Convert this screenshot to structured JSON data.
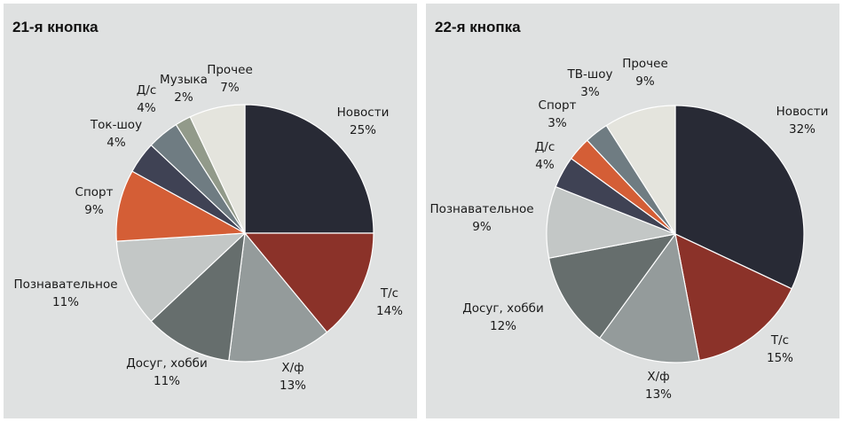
{
  "chart_data": [
    {
      "type": "pie",
      "title": "21-я кнопка",
      "slices": [
        {
          "label": "Новости",
          "value": 25,
          "value_label": "25%",
          "color": "#282a35"
        },
        {
          "label": "Т/с",
          "value": 14,
          "value_label": "14%",
          "color": "#8b3229"
        },
        {
          "label": "Х/ф",
          "value": 13,
          "value_label": "13%",
          "color": "#949b9b"
        },
        {
          "label": "Досуг, хобби",
          "value": 11,
          "value_label": "11%",
          "color": "#666e6d"
        },
        {
          "label": "Познавательное",
          "value": 11,
          "value_label": "11%",
          "color": "#c3c7c6"
        },
        {
          "label": "Спорт",
          "value": 9,
          "value_label": "9%",
          "color": "#d45e36"
        },
        {
          "label": "Ток-шоу",
          "value": 4,
          "value_label": "4%",
          "color": "#3f4254"
        },
        {
          "label": "Д/с",
          "value": 4,
          "value_label": "4%",
          "color": "#6f7c82"
        },
        {
          "label": "Музыка",
          "value": 2,
          "value_label": "2%",
          "color": "#929a8a"
        },
        {
          "label": "Прочее",
          "value": 7,
          "value_label": "7%",
          "color": "#e4e4dd"
        }
      ],
      "legend": "none"
    },
    {
      "type": "pie",
      "title": "22-я кнопка",
      "slices": [
        {
          "label": "Новости",
          "value": 32,
          "value_label": "32%",
          "color": "#282a35"
        },
        {
          "label": "Т/с",
          "value": 15,
          "value_label": "15%",
          "color": "#8b3229"
        },
        {
          "label": "Х/ф",
          "value": 13,
          "value_label": "13%",
          "color": "#949b9b"
        },
        {
          "label": "Досуг, хобби",
          "value": 12,
          "value_label": "12%",
          "color": "#666e6d"
        },
        {
          "label": "Познавательное",
          "value": 9,
          "value_label": "9%",
          "color": "#c3c7c6"
        },
        {
          "label": "Д/с",
          "value": 4,
          "value_label": "4%",
          "color": "#3f4254"
        },
        {
          "label": "Спорт",
          "value": 3,
          "value_label": "3%",
          "color": "#d45e36"
        },
        {
          "label": "ТВ-шоу",
          "value": 3,
          "value_label": "3%",
          "color": "#6f7c82"
        },
        {
          "label": "Прочее",
          "value": 9,
          "value_label": "9%",
          "color": "#e4e4dd"
        }
      ],
      "legend": "none"
    }
  ]
}
